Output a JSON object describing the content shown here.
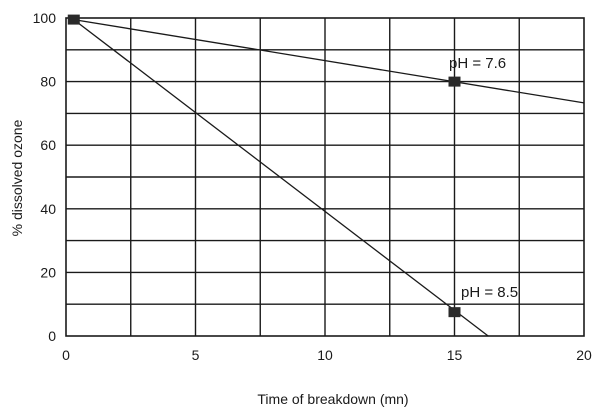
{
  "chart_data": {
    "type": "line",
    "xlabel": "Time of breakdown (mn)",
    "ylabel": "% dissolved ozone",
    "xlim": [
      0,
      20
    ],
    "ylim": [
      0,
      100
    ],
    "x_ticks": [
      "0",
      "5",
      "10",
      "15",
      "20"
    ],
    "y_ticks": [
      "0",
      "20",
      "40",
      "60",
      "80",
      "100"
    ],
    "grid": true,
    "series": [
      {
        "name": "pH = 7.6",
        "line": [
          [
            0.3,
            99.5
          ],
          [
            20,
            73.3
          ]
        ],
        "markers": [
          [
            0.3,
            99.5
          ],
          [
            15,
            80
          ]
        ]
      },
      {
        "name": "pH = 8.5",
        "line": [
          [
            0.3,
            99.5
          ],
          [
            16.3,
            0
          ]
        ],
        "markers": [
          [
            15,
            7.5
          ]
        ]
      }
    ],
    "colors": {
      "line": "#1a1a1a",
      "grid": "#1a1a1a",
      "marker": "#2a2a2a"
    }
  }
}
